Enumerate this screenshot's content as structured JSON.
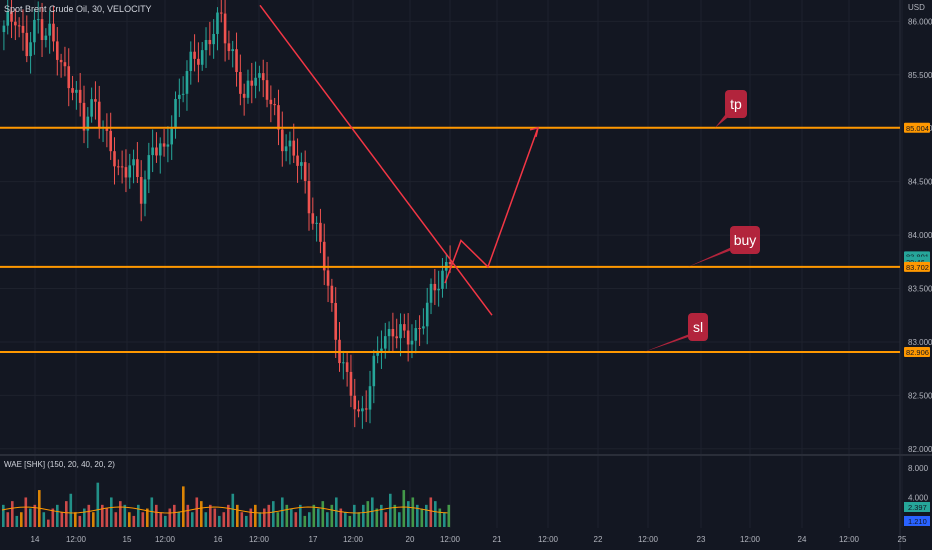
{
  "header": {
    "symbol_label": "Spot Brent Crude Oil, 30, VELOCITY",
    "currency": "USD"
  },
  "indicator": {
    "label": "WAE [SHK] (150, 20, 40, 20, 2)",
    "ticks": [
      "8.000",
      "4.000"
    ],
    "badge_values": [
      "2.397",
      "1.210"
    ],
    "badge_colors": [
      "#26a69a",
      "#2962ff"
    ]
  },
  "colors": {
    "background": "#131722",
    "up": "#26a69a",
    "down": "#ef5350",
    "level_line": "#ff9800",
    "drawing": "#f23645",
    "callout": "#b2243c"
  },
  "chart_data": {
    "type": "candlestick",
    "y_ticks": [
      "86.000",
      "85.500",
      "85.000",
      "84.500",
      "84.000",
      "83.500",
      "83.000",
      "82.500",
      "82.000"
    ],
    "x_ticks": [
      "14",
      "12:00",
      "15",
      "12:00",
      "16",
      "12:00",
      "17",
      "12:00",
      "20",
      "12:00",
      "21",
      "12:00",
      "22",
      "12:00",
      "23",
      "12:00",
      "24",
      "12:00",
      "25"
    ],
    "ylim": [
      81.97,
      86.2
    ],
    "price_tags": [
      {
        "value": 83.801,
        "label": "83.801",
        "color": "#26a69a"
      },
      {
        "value": 83.75,
        "label": "29:46",
        "color": "#26a69a"
      },
      {
        "value": 83.702,
        "label": "83.702",
        "color": "#ff9800"
      },
      {
        "value": 85.004,
        "label": "85.004",
        "color": "#ff9800"
      },
      {
        "value": 82.906,
        "label": "82.906",
        "color": "#ff9800"
      }
    ],
    "levels": [
      {
        "name": "tp",
        "value": 85.004
      },
      {
        "name": "buy",
        "value": 83.702
      },
      {
        "name": "sl",
        "value": 82.906
      }
    ],
    "callouts": [
      "tp",
      "buy",
      "sl"
    ],
    "price_path": [
      [
        0,
        85.9
      ],
      [
        3,
        86.1
      ],
      [
        6,
        85.7
      ],
      [
        9,
        86.0
      ],
      [
        12,
        85.9
      ],
      [
        15,
        85.55
      ],
      [
        18,
        85.45
      ],
      [
        21,
        85.0
      ],
      [
        24,
        85.3
      ],
      [
        27,
        84.85
      ],
      [
        30,
        84.6
      ],
      [
        33,
        84.7
      ],
      [
        36,
        84.35
      ],
      [
        39,
        84.9
      ],
      [
        42,
        84.7
      ],
      [
        45,
        85.25
      ],
      [
        48,
        85.5
      ],
      [
        51,
        85.7
      ],
      [
        54,
        85.85
      ],
      [
        57,
        86.0
      ],
      [
        60,
        85.7
      ],
      [
        63,
        85.2
      ],
      [
        66,
        85.6
      ],
      [
        69,
        85.3
      ],
      [
        72,
        85.0
      ],
      [
        75,
        84.8
      ],
      [
        78,
        84.6
      ],
      [
        81,
        84.2
      ],
      [
        84,
        83.7
      ],
      [
        87,
        83.1
      ],
      [
        90,
        82.6
      ],
      [
        93,
        82.3
      ],
      [
        96,
        82.6
      ],
      [
        99,
        83.0
      ],
      [
        102,
        83.15
      ],
      [
        105,
        83.0
      ],
      [
        108,
        83.1
      ],
      [
        111,
        83.3
      ],
      [
        114,
        83.6
      ],
      [
        117,
        83.8
      ]
    ],
    "volume": [
      3.0,
      2.0,
      3.5,
      1.5,
      2.0,
      4.0,
      2.5,
      3.0,
      5.0,
      2.0,
      1.0,
      2.5,
      3.0,
      2.0,
      3.5,
      4.5,
      2.0,
      1.5,
      2.5,
      3.0,
      2.0,
      6.0,
      3.0,
      2.5,
      4.0,
      2.0,
      3.5,
      3.0,
      2.0,
      1.5,
      3.0,
      2.0,
      2.5,
      4.0,
      3.0,
      2.0,
      1.5,
      2.5,
      3.0,
      2.0,
      5.5,
      3.0,
      2.0,
      4.0,
      3.5,
      2.0,
      3.0,
      2.5,
      1.5,
      2.0,
      3.0,
      4.5,
      3.0,
      2.0,
      1.5,
      2.5,
      3.0,
      2.0,
      2.5,
      3.0,
      3.5,
      2.0,
      4.0,
      3.0,
      2.5,
      2.0,
      3.0,
      1.5,
      2.0,
      3.0,
      2.5,
      3.5,
      2.0,
      3.0,
      4.0,
      2.5,
      2.0,
      1.5,
      3.0,
      2.0,
      3.0,
      3.5,
      4.0,
      2.5,
      3.0,
      2.0,
      4.5,
      3.0,
      2.0,
      5.0,
      3.5,
      4.0,
      3.0,
      2.5,
      3.0,
      4.0,
      3.5,
      2.5,
      2.0,
      3.0
    ]
  }
}
